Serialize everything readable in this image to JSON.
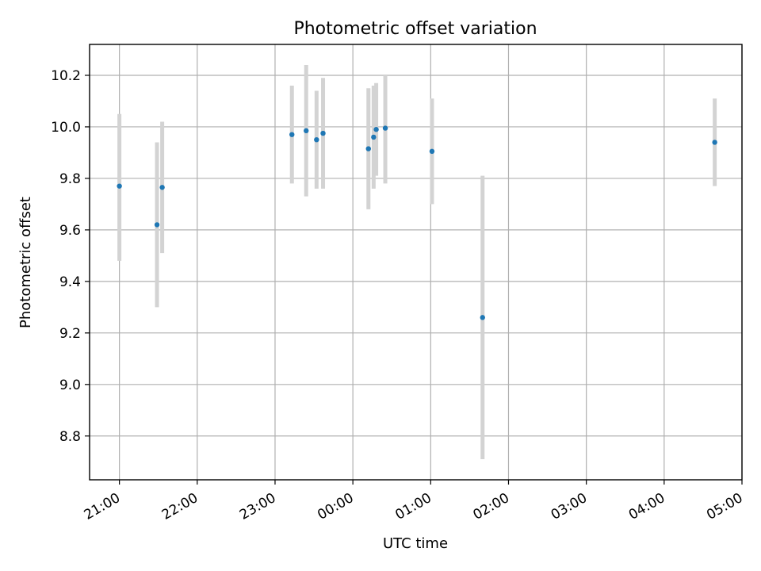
{
  "chart_data": {
    "type": "scatter",
    "title": "Photometric offset variation",
    "xlabel": "UTC time",
    "ylabel": "Photometric offset",
    "x_axis_kind": "time",
    "x_range": [
      "20:37",
      "05:00"
    ],
    "ylim": [
      8.63,
      10.32
    ],
    "x_ticks": [
      "21:00",
      "22:00",
      "23:00",
      "00:00",
      "01:00",
      "02:00",
      "03:00",
      "04:00",
      "05:00"
    ],
    "y_ticks": [
      "8.8",
      "9.0",
      "9.2",
      "9.4",
      "9.6",
      "9.8",
      "10.0",
      "10.2"
    ],
    "y_tick_values": [
      8.8,
      9.0,
      9.2,
      9.4,
      9.6,
      9.8,
      10.0,
      10.2
    ],
    "grid": true,
    "series": [
      {
        "marker_color": "#1f77b4",
        "errorbar_color": "#d3d3d3",
        "points": [
          {
            "time": "21:00",
            "y": 9.77,
            "y_low": 9.48,
            "y_high": 10.05
          },
          {
            "time": "21:29",
            "y": 9.62,
            "y_low": 9.3,
            "y_high": 9.94
          },
          {
            "time": "21:33",
            "y": 9.765,
            "y_low": 9.51,
            "y_high": 10.02
          },
          {
            "time": "23:13",
            "y": 9.97,
            "y_low": 9.78,
            "y_high": 10.16
          },
          {
            "time": "23:24",
            "y": 9.985,
            "y_low": 9.73,
            "y_high": 10.24
          },
          {
            "time": "23:32",
            "y": 9.95,
            "y_low": 9.76,
            "y_high": 10.14
          },
          {
            "time": "23:37",
            "y": 9.975,
            "y_low": 9.76,
            "y_high": 10.19
          },
          {
            "time": "00:12",
            "y": 9.915,
            "y_low": 9.68,
            "y_high": 10.15
          },
          {
            "time": "00:16",
            "y": 9.96,
            "y_low": 9.76,
            "y_high": 10.16
          },
          {
            "time": "00:18",
            "y": 9.99,
            "y_low": 9.81,
            "y_high": 10.17
          },
          {
            "time": "00:25",
            "y": 9.995,
            "y_low": 9.78,
            "y_high": 10.2
          },
          {
            "time": "01:01",
            "y": 9.905,
            "y_low": 9.7,
            "y_high": 10.11
          },
          {
            "time": "01:40",
            "y": 9.26,
            "y_low": 8.71,
            "y_high": 9.81
          },
          {
            "time": "04:39",
            "y": 9.94,
            "y_low": 9.77,
            "y_high": 10.11
          }
        ]
      }
    ]
  }
}
